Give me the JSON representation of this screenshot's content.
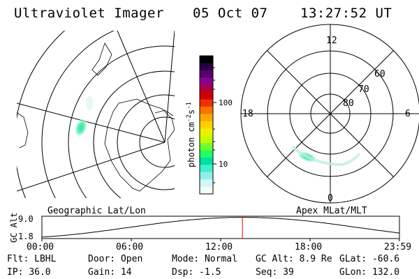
{
  "header": {
    "instrument": "Ultraviolet Imager",
    "date": "05 Oct 07",
    "time": "13:27:52 UT"
  },
  "geo_panel": {
    "label": "Geographic Lat/Lon"
  },
  "polar_panel": {
    "label": "Apex MLat/MLT",
    "mlt_labels": {
      "top": "12",
      "left": "18",
      "right": "6",
      "bottom": "0"
    },
    "lat_labels": [
      "60",
      "70",
      "80"
    ]
  },
  "colorbar": {
    "unit_main": "photon cm",
    "unit_sup1": "-2",
    "unit_mid": "s",
    "unit_sup2": "-1",
    "scale": "log",
    "ticks": [
      "100",
      "10"
    ],
    "colors": [
      "#000000",
      "#2a0045",
      "#5a0070",
      "#8a0090",
      "#b00040",
      "#d00000",
      "#f03000",
      "#ff7000",
      "#ffa800",
      "#ffd000",
      "#f0f000",
      "#c0ff00",
      "#70ff30",
      "#20ff60",
      "#00e0a0",
      "#40f0d0",
      "#90f0e8",
      "#d0f8f4",
      "#f4fcfc"
    ]
  },
  "altitude_strip": {
    "axis_label": "GC Alt",
    "y_ticks": [
      "9.0",
      "1.8"
    ],
    "x_ticks": [
      "00:00",
      "06:00",
      "12:00",
      "18:00",
      "23:59"
    ],
    "x_tick_hours": [
      0,
      6,
      12,
      18,
      23.983
    ],
    "current_hour": 13.464,
    "line_color": "#ff0000"
  },
  "status": {
    "filter_label": "Flt:",
    "filter_value": "LBHL",
    "door_label": "Door:",
    "door_value": "Open",
    "mode_label": "Mode:",
    "mode_value": "Normal",
    "gcalt_label": "GC Alt:",
    "gcalt_value": "8.9 Re",
    "glat_label": "GLat:",
    "glat_value": "-60.6",
    "ip_label": "IP:",
    "ip_value": "36.0",
    "gain_label": "Gain:",
    "gain_value": "14",
    "dsp_label": "Dsp:",
    "dsp_value": "-1.5",
    "seq_label": "Seq:",
    "seq_value": "39",
    "glon_label": "GLon:",
    "glon_value": "132.0"
  }
}
